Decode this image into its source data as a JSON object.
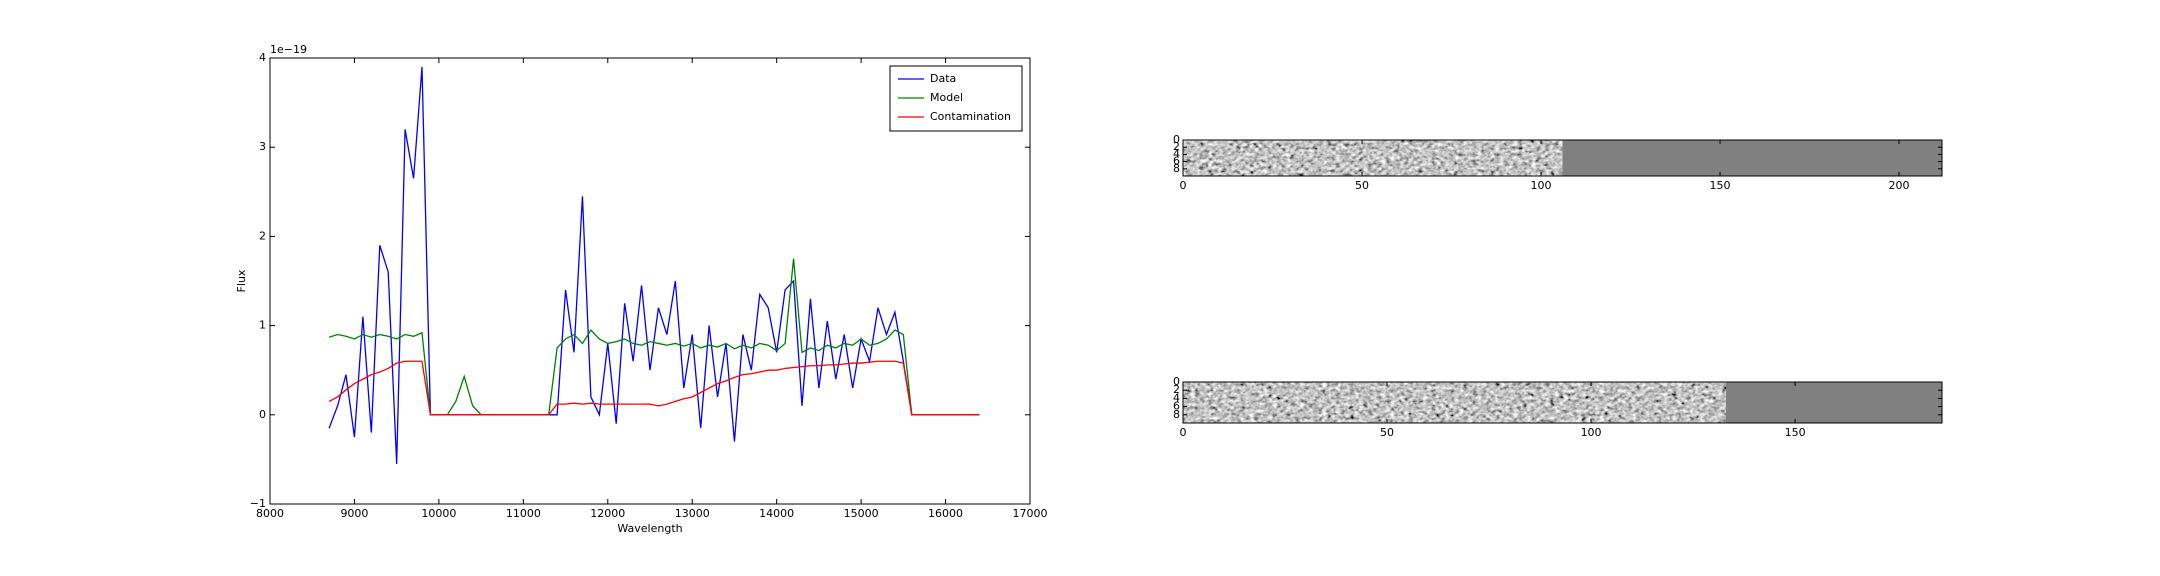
{
  "chart_data": [
    {
      "type": "line",
      "xlabel": "Wavelength",
      "ylabel": "Flux",
      "offset_text": "1e−19",
      "xlim": [
        8000,
        17000
      ],
      "xticks": [
        8000,
        9000,
        10000,
        11000,
        12000,
        13000,
        14000,
        15000,
        16000,
        17000
      ],
      "ylim": [
        -1,
        4
      ],
      "yticks": [
        {
          "value": -1,
          "label": "−1"
        },
        0,
        1,
        2,
        3,
        4
      ],
      "legend": "upper right",
      "x": [
        8700,
        8800,
        8900,
        9000,
        9100,
        9200,
        9300,
        9400,
        9500,
        9600,
        9700,
        9800,
        9900,
        10000,
        10100,
        10200,
        10300,
        10400,
        10500,
        10600,
        10700,
        10800,
        10900,
        11000,
        11100,
        11200,
        11300,
        11400,
        11500,
        11600,
        11700,
        11800,
        11900,
        12000,
        12100,
        12200,
        12300,
        12400,
        12500,
        12600,
        12700,
        12800,
        12900,
        13000,
        13100,
        13200,
        13300,
        13400,
        13500,
        13600,
        13700,
        13800,
        13900,
        14000,
        14100,
        14200,
        14300,
        14400,
        14500,
        14600,
        14700,
        14800,
        14900,
        15000,
        15100,
        15200,
        15300,
        15400,
        15500,
        15600,
        15700,
        15800,
        15900,
        16000,
        16100,
        16200,
        16300,
        16400
      ],
      "series": [
        {
          "name": "Data",
          "color": "#0000ff",
          "values": [
            -0.15,
            0.1,
            0.45,
            -0.25,
            1.1,
            -0.2,
            1.9,
            1.6,
            -0.55,
            3.2,
            2.65,
            3.9,
            0,
            0,
            0,
            0,
            0,
            0,
            0,
            0,
            0,
            0,
            0,
            0,
            0,
            0,
            0,
            0,
            1.4,
            0.7,
            2.45,
            0.2,
            0.0,
            0.8,
            -0.1,
            1.25,
            0.6,
            1.45,
            0.5,
            1.2,
            0.9,
            1.5,
            0.3,
            0.9,
            -0.15,
            1.0,
            0.2,
            0.8,
            -0.3,
            0.9,
            0.5,
            1.35,
            1.2,
            0.7,
            1.4,
            1.5,
            0.1,
            1.3,
            0.3,
            1.05,
            0.4,
            0.9,
            0.3,
            0.85,
            0.6,
            1.2,
            0.9,
            1.15,
            0.6,
            0,
            0,
            0,
            0,
            0,
            0,
            0,
            0,
            0
          ]
        },
        {
          "name": "Model",
          "color": "#008000",
          "values": [
            0.87,
            0.9,
            0.88,
            0.85,
            0.9,
            0.87,
            0.9,
            0.88,
            0.85,
            0.9,
            0.88,
            0.92,
            0,
            0,
            0,
            0.15,
            0.43,
            0.1,
            0,
            0,
            0,
            0,
            0,
            0,
            0,
            0,
            0,
            0.75,
            0.85,
            0.9,
            0.8,
            0.95,
            0.85,
            0.8,
            0.82,
            0.85,
            0.8,
            0.78,
            0.82,
            0.8,
            0.78,
            0.8,
            0.77,
            0.8,
            0.75,
            0.78,
            0.76,
            0.8,
            0.74,
            0.78,
            0.75,
            0.8,
            0.78,
            0.72,
            0.8,
            1.75,
            0.7,
            0.75,
            0.72,
            0.78,
            0.75,
            0.8,
            0.78,
            0.85,
            0.78,
            0.8,
            0.85,
            0.95,
            0.9,
            0,
            0,
            0,
            0,
            0,
            0,
            0,
            0,
            0
          ]
        },
        {
          "name": "Contamination",
          "color": "#ff0000",
          "values": [
            0.15,
            0.2,
            0.28,
            0.35,
            0.4,
            0.45,
            0.48,
            0.52,
            0.58,
            0.6,
            0.6,
            0.6,
            0,
            0,
            0,
            0,
            0,
            0,
            0,
            0,
            0,
            0,
            0,
            0,
            0,
            0,
            0,
            0.12,
            0.12,
            0.13,
            0.12,
            0.13,
            0.12,
            0.12,
            0.12,
            0.12,
            0.12,
            0.12,
            0.12,
            0.1,
            0.12,
            0.15,
            0.18,
            0.2,
            0.25,
            0.3,
            0.35,
            0.38,
            0.42,
            0.45,
            0.46,
            0.48,
            0.5,
            0.5,
            0.52,
            0.53,
            0.54,
            0.55,
            0.55,
            0.56,
            0.56,
            0.57,
            0.58,
            0.58,
            0.59,
            0.6,
            0.6,
            0.6,
            0.58,
            0,
            0,
            0,
            0,
            0,
            0,
            0,
            0,
            0
          ]
        }
      ]
    },
    {
      "type": "image",
      "xlim": [
        0,
        212
      ],
      "xticks": [
        0,
        50,
        100,
        150,
        200
      ],
      "ylim": [
        10,
        0
      ],
      "yticks": [
        0,
        2,
        4,
        6,
        8
      ]
    },
    {
      "type": "image",
      "xlim": [
        0,
        186
      ],
      "xticks": [
        0,
        50,
        100,
        150
      ],
      "ylim": [
        10,
        0
      ],
      "yticks": [
        0,
        2,
        4,
        6,
        8
      ]
    }
  ]
}
